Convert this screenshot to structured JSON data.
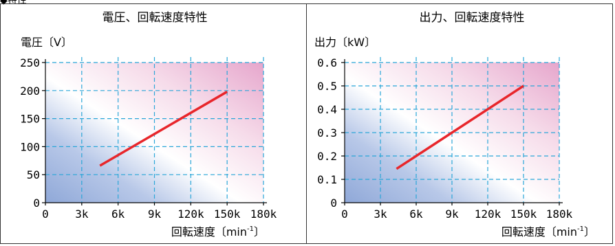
{
  "section_label": "◆特性",
  "chart_data": [
    {
      "type": "line",
      "title": "電圧、回転速度特性",
      "ylabel": "電圧〔V〕",
      "xlabel_main": "回転速度〔min",
      "xlabel_sup": "-1",
      "xlabel_close": "〕",
      "x_ticks": [
        "0",
        "3k",
        "6k",
        "9k",
        "120k",
        "150k",
        "180k"
      ],
      "y_ticks": [
        "0",
        "50",
        "100",
        "150",
        "200",
        "250"
      ],
      "xlim": [
        0,
        6
      ],
      "ylim": [
        0,
        250
      ],
      "grid": true,
      "line_color": "#e8262b",
      "series": [
        {
          "x": [
            1.5,
            5.0
          ],
          "y": [
            66,
            198
          ]
        }
      ]
    },
    {
      "type": "line",
      "title": "出力、回転速度特性",
      "ylabel": "出力〔kW〕",
      "xlabel_main": "回転速度〔min",
      "xlabel_sup": "-1",
      "xlabel_close": "〕",
      "x_ticks": [
        "0",
        "3k",
        "6k",
        "9k",
        "120k",
        "150k",
        "180k"
      ],
      "y_ticks": [
        "0",
        "0.1",
        "0.2",
        "0.3",
        "0.4",
        "0.5",
        "0.6"
      ],
      "xlim": [
        0,
        6
      ],
      "ylim": [
        0,
        0.6
      ],
      "grid": true,
      "line_color": "#e8262b",
      "series": [
        {
          "x": [
            1.45,
            5.0
          ],
          "y": [
            0.145,
            0.5
          ]
        }
      ]
    }
  ]
}
